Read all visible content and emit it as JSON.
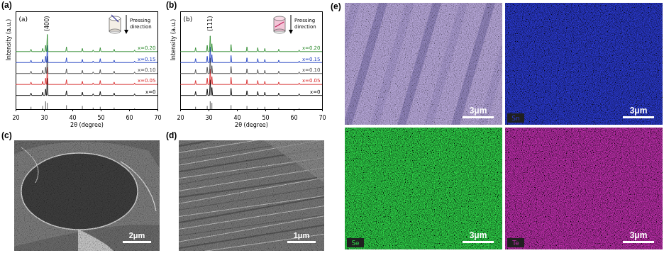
{
  "chart_data": [
    {
      "type": "line",
      "panel_label": "(a)",
      "inset_label": "(a)",
      "inset_text": "Pressing direction",
      "x_label": "2θ (degree)",
      "y_label": "Intensity (a.u.)",
      "xlim": [
        20,
        70
      ],
      "xticks": [
        20,
        30,
        40,
        50,
        60,
        70
      ],
      "ylim": [
        0,
        125
      ],
      "yticks": [],
      "tick_labels": "x",
      "annotation": {
        "text": "(400)",
        "x": 31.05,
        "y": 100
      },
      "x": [
        20,
        25.05,
        25.3,
        25.55,
        29.15,
        29.4,
        29.65,
        30.2,
        30.45,
        30.7,
        30.8,
        31.05,
        31.3,
        37.55,
        37.8,
        38.05,
        43.15,
        43.4,
        43.65,
        46.95,
        47.2,
        47.45,
        49.45,
        49.7,
        49.95,
        54.35,
        54.6,
        54.85,
        61.55,
        61.8,
        62.05,
        70
      ],
      "series": [
        {
          "name": "x=0",
          "color": "#000000",
          "values": [
            18,
            18,
            21,
            18,
            18,
            22,
            18,
            18,
            26,
            18,
            18,
            40,
            18,
            18,
            24,
            18,
            18,
            22,
            18,
            18,
            20,
            18,
            18,
            23,
            18,
            18,
            21,
            18,
            18,
            20,
            18,
            18
          ]
        },
        {
          "name": "x=0.05",
          "color": "#d62728",
          "values": [
            32,
            32,
            35,
            32,
            32,
            36,
            32,
            32,
            40,
            32,
            32,
            54,
            32,
            32,
            38,
            32,
            32,
            36,
            32,
            32,
            34,
            32,
            32,
            37,
            32,
            32,
            35,
            32,
            32,
            34,
            32,
            32
          ]
        },
        {
          "name": "x=0.10",
          "color": "#4a4a4a",
          "values": [
            46,
            46,
            49,
            46,
            46,
            50,
            46,
            46,
            54,
            46,
            46,
            68,
            46,
            46,
            52,
            46,
            46,
            50,
            46,
            46,
            48,
            46,
            46,
            51,
            46,
            46,
            49,
            46,
            46,
            48,
            46,
            46
          ]
        },
        {
          "name": "x=0.15",
          "color": "#1f3fbf",
          "values": [
            60,
            60,
            63,
            60,
            60,
            64,
            60,
            60,
            68,
            60,
            60,
            82,
            60,
            60,
            66,
            60,
            60,
            64,
            60,
            60,
            62,
            60,
            60,
            65,
            60,
            60,
            63,
            60,
            60,
            62,
            60,
            60
          ]
        },
        {
          "name": "x=0.20",
          "color": "#2e8b2e",
          "values": [
            74,
            74,
            77,
            74,
            74,
            78,
            74,
            74,
            82,
            74,
            74,
            96,
            74,
            74,
            80,
            74,
            74,
            78,
            74,
            74,
            76,
            74,
            74,
            79,
            74,
            74,
            77,
            74,
            74,
            76,
            74,
            74
          ]
        }
      ],
      "reference": {
        "x": [
          25.3,
          29.4,
          30.45,
          31.05,
          37.8,
          43.4,
          47.2,
          49.7,
          54.6,
          61.8
        ],
        "values": [
          3,
          4,
          10,
          8,
          5,
          4,
          2,
          3,
          2,
          1
        ]
      }
    },
    {
      "type": "line",
      "panel_label": "(b)",
      "inset_label": "(b)",
      "inset_text": "Pressing direction",
      "x_label": "2θ (degree)",
      "y_label": "Intensity (a.u.)",
      "xlim": [
        20,
        70
      ],
      "xticks": [
        20,
        30,
        40,
        50,
        60,
        70
      ],
      "ylim": [
        0,
        125
      ],
      "yticks": [],
      "tick_labels": "x",
      "annotation": {
        "text": "(111)",
        "x": 30.45,
        "y": 100
      },
      "x": [
        20,
        25.05,
        25.3,
        25.55,
        29.15,
        29.4,
        29.65,
        30.2,
        30.45,
        30.7,
        30.8,
        31.05,
        31.3,
        37.55,
        37.8,
        38.05,
        43.15,
        43.4,
        43.65,
        46.95,
        47.2,
        47.45,
        49.45,
        49.7,
        49.95,
        54.35,
        54.6,
        54.85,
        61.55,
        61.8,
        62.05,
        70
      ],
      "series": [
        {
          "name": "x=0",
          "color": "#000000",
          "values": [
            18,
            18,
            23,
            18,
            18,
            26,
            18,
            18,
            38,
            18,
            18,
            28,
            18,
            18,
            27,
            18,
            18,
            24,
            18,
            18,
            23,
            18,
            18,
            22,
            18,
            18,
            21,
            18,
            18,
            20,
            18,
            18
          ]
        },
        {
          "name": "x=0.05",
          "color": "#d62728",
          "values": [
            32,
            32,
            37,
            32,
            32,
            40,
            32,
            32,
            52,
            32,
            32,
            42,
            32,
            32,
            41,
            32,
            32,
            38,
            32,
            32,
            37,
            32,
            32,
            36,
            32,
            32,
            35,
            32,
            32,
            34,
            32,
            32
          ]
        },
        {
          "name": "x=0.10",
          "color": "#4a4a4a",
          "values": [
            46,
            46,
            51,
            46,
            46,
            54,
            46,
            46,
            66,
            46,
            46,
            56,
            46,
            46,
            55,
            46,
            46,
            52,
            46,
            46,
            51,
            46,
            46,
            50,
            46,
            46,
            49,
            46,
            46,
            48,
            46,
            46
          ]
        },
        {
          "name": "x=0.15",
          "color": "#1f3fbf",
          "values": [
            60,
            60,
            65,
            60,
            60,
            68,
            60,
            60,
            80,
            60,
            60,
            70,
            60,
            60,
            69,
            60,
            60,
            66,
            60,
            60,
            65,
            60,
            60,
            64,
            60,
            60,
            63,
            60,
            60,
            62,
            60,
            60
          ]
        },
        {
          "name": "x=0.20",
          "color": "#2e8b2e",
          "values": [
            74,
            74,
            79,
            74,
            74,
            82,
            74,
            74,
            94,
            74,
            74,
            84,
            74,
            74,
            83,
            74,
            74,
            80,
            74,
            74,
            79,
            74,
            74,
            78,
            74,
            74,
            77,
            74,
            74,
            76,
            74,
            74
          ]
        }
      ],
      "reference": {
        "x": [
          25.3,
          29.4,
          30.45,
          31.05,
          37.8,
          43.4,
          47.2,
          49.7,
          54.6,
          61.8
        ],
        "values": [
          3,
          4,
          10,
          8,
          5,
          4,
          2,
          3,
          2,
          1
        ]
      }
    }
  ],
  "panels": [
    {
      "label": "(c)",
      "scale_bar": "2μm"
    },
    {
      "label": "(d)",
      "scale_bar": "1μm"
    },
    {
      "label": "(e)",
      "maps": [
        {
          "scale_bar": "3μm",
          "color": "#b9a9dc"
        },
        {
          "element": "Sn",
          "scale_bar": "3μm",
          "color": "#2b3bd6"
        },
        {
          "element": "Se",
          "scale_bar": "3μm",
          "color": "#2fd84a"
        },
        {
          "element": "Te",
          "scale_bar": "3μm",
          "color": "#c22fb0"
        }
      ]
    }
  ]
}
